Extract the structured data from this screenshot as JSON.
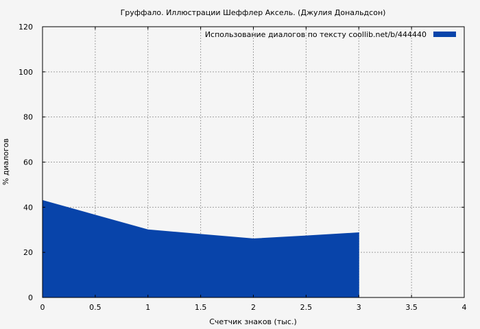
{
  "chart_data": {
    "type": "area",
    "title": "Груффало. Иллюстрации Шеффлер Аксель. (Джулия Дональдсон)",
    "xlabel": "Счетчик знаков (тыс.)",
    "ylabel": "% диалогов",
    "xlim": [
      0,
      4
    ],
    "ylim": [
      0,
      120
    ],
    "xticks": [
      0,
      0.5,
      1,
      1.5,
      2,
      2.5,
      3,
      3.5,
      4
    ],
    "xtick_labels": [
      "0",
      "0.5",
      "1",
      "1.5",
      "2",
      "2.5",
      "3",
      "3.5",
      "4"
    ],
    "yticks": [
      0,
      20,
      40,
      60,
      80,
      100,
      120
    ],
    "ytick_labels": [
      "0",
      "20",
      "40",
      "60",
      "80",
      "100",
      "120"
    ],
    "grid": true,
    "legend_position": "top-right",
    "series": [
      {
        "name": "Использование диалогов по тексту  coollib.net/b/444440",
        "color": "#0844aa",
        "x": [
          0,
          0.5,
          1,
          1.5,
          2,
          2.5,
          3
        ],
        "y": [
          43,
          36.5,
          30,
          28,
          26,
          27.3,
          28.7
        ]
      }
    ]
  }
}
